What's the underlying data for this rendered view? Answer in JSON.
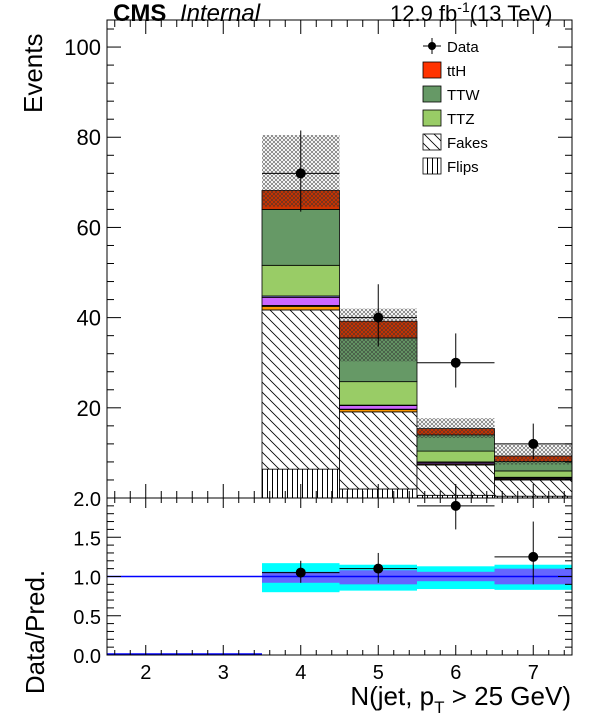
{
  "header": {
    "experiment": "CMS",
    "status": "Internal",
    "lumi_prefix": "12.9 fb",
    "lumi_sup": "-1",
    "lumi_suffix": "(13 TeV)"
  },
  "chart_data": [
    {
      "type": "bar",
      "stacked": true,
      "title": "",
      "ylabel": "Events",
      "xlabel": "N(jet, p_T > 25 GeV)",
      "xlim": [
        1.5,
        7.5
      ],
      "ylim": [
        0,
        106
      ],
      "x_ticks": [
        "2",
        "3",
        "4",
        "5",
        "6",
        "7"
      ],
      "y_ticks": [
        "20",
        "40",
        "60",
        "80",
        "100"
      ],
      "legend_position": "top-right",
      "bins": [
        {
          "low": 3.5,
          "high": 4.5
        },
        {
          "low": 4.5,
          "high": 5.5
        },
        {
          "low": 5.5,
          "high": 6.5
        },
        {
          "low": 6.5,
          "high": 7.5
        }
      ],
      "stack": [
        {
          "name": "Flips",
          "color": "#ffffff",
          "pattern": "vertical",
          "values": [
            6.4,
            2.0,
            0.6,
            0.4
          ]
        },
        {
          "name": "Fakes",
          "color": "#ffffff",
          "pattern": "diagonal",
          "values": [
            35.3,
            17.1,
            6.7,
            3.6
          ]
        },
        {
          "name": "",
          "color": "#ff9900",
          "values": [
            0.8,
            0.5,
            0.2,
            0.2
          ]
        },
        {
          "name": "",
          "color": "#000000",
          "values": [
            0.2,
            0.1,
            0.1,
            0.1
          ]
        },
        {
          "name": "",
          "color": "#cc66ff",
          "values": [
            1.8,
            0.8,
            0.3,
            0.2
          ]
        },
        {
          "name": "",
          "color": "#9999ff",
          "values": [
            0.3,
            0.1,
            0.1,
            0.1
          ]
        },
        {
          "name": "TTZ",
          "color": "#99cc66",
          "values": [
            6.8,
            5.2,
            2.4,
            1.4
          ]
        },
        {
          "name": "TTW",
          "color": "#669966",
          "values": [
            12.4,
            9.7,
            3.6,
            2.1
          ]
        },
        {
          "name": "ttH",
          "color": "#cc3300",
          "values": [
            4.2,
            3.7,
            1.4,
            1.2
          ]
        }
      ],
      "uncertainty": {
        "pattern": "crosshatch",
        "up": [
          80.5,
          42.0,
          17.7,
          11.8
        ],
        "down": [
          64.6,
          30.3,
          13.3,
          7.4
        ]
      },
      "data": {
        "name": "Data",
        "x": [
          4,
          5,
          6,
          7
        ],
        "y": [
          72,
          40,
          30,
          12
        ],
        "err_up": [
          9.5,
          7.4,
          6.5,
          4.5
        ],
        "err_down": [
          8.5,
          6.4,
          5.5,
          3.4
        ]
      },
      "legend": [
        {
          "label": "Data",
          "kind": "marker"
        },
        {
          "label": "ttH",
          "kind": "fill",
          "color": "#ff3300"
        },
        {
          "label": "TTW",
          "kind": "fill",
          "color": "#669966"
        },
        {
          "label": "TTZ",
          "kind": "fill",
          "color": "#99cc66"
        },
        {
          "label": "Fakes",
          "kind": "pattern",
          "pattern": "diagonal"
        },
        {
          "label": "Flips",
          "kind": "pattern",
          "pattern": "vertical"
        }
      ]
    },
    {
      "type": "scatter",
      "title": "",
      "ylabel": "Data/Pred.",
      "xlabel": "N(jet, p_T > 25 GeV)",
      "xlim": [
        1.5,
        7.5
      ],
      "ylim": [
        0,
        2.0
      ],
      "x_ticks": [
        "2",
        "3",
        "4",
        "5",
        "6",
        "7"
      ],
      "y_ticks": [
        "0.0",
        "0.5",
        "1.0",
        "1.5",
        "2.0"
      ],
      "reference_line": 1.0,
      "bands": [
        {
          "name": "",
          "color": "#00ffff",
          "low": [
            0.8,
            0.82,
            0.84,
            0.83
          ],
          "high": [
            1.17,
            1.15,
            1.13,
            1.15
          ]
        },
        {
          "name": "",
          "color": "#6666ff",
          "low": [
            0.92,
            0.9,
            0.94,
            0.9
          ],
          "high": [
            1.06,
            1.08,
            1.06,
            1.1
          ]
        }
      ],
      "x": [
        4,
        5,
        6,
        7
      ],
      "y": [
        1.05,
        1.1,
        1.9,
        1.25
      ],
      "err_up": [
        0.15,
        0.2,
        0.25,
        0.45
      ],
      "err_down": [
        0.13,
        0.18,
        0.3,
        0.35
      ]
    }
  ]
}
